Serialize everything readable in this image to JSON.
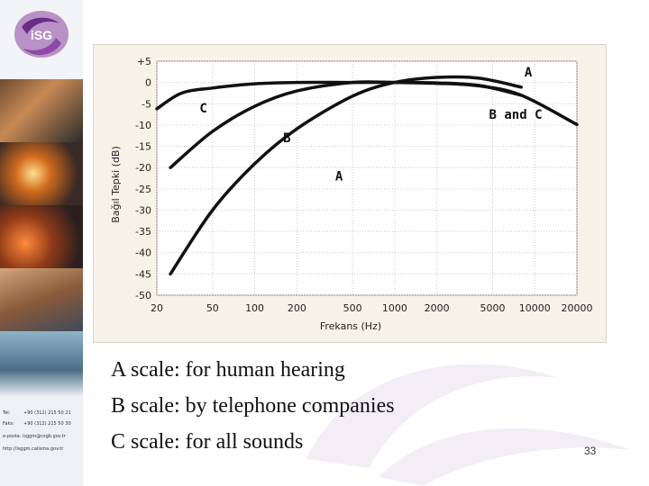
{
  "logo": {
    "text": "iSG"
  },
  "contact": {
    "tel": "Tel:",
    "tel_value": "+90 (312) 215 50 21",
    "fax": "Faks:",
    "fax_value": "+90 (312) 215 50 30",
    "email": "e-posta: isggm@csgb.gov.tr",
    "web": "http://isggm.calisma.gov.tr"
  },
  "chart_data": {
    "type": "line",
    "xlabel": "Frekans (Hz)",
    "ylabel": "Bağıl Tepki (dB)",
    "x_scale": "log",
    "xlim": [
      20,
      20000
    ],
    "ylim": [
      -50,
      5
    ],
    "x_ticks": [
      20,
      50,
      100,
      200,
      500,
      1000,
      2000,
      5000,
      10000,
      20000
    ],
    "x_tick_labels": [
      "20",
      "50",
      "100",
      "200",
      "500",
      "1000",
      "2000",
      "5000",
      "10000",
      "20000"
    ],
    "y_ticks": [
      5,
      0,
      -5,
      -10,
      -15,
      -20,
      -25,
      -30,
      -35,
      -40,
      -45,
      -50
    ],
    "y_tick_labels": [
      "+5",
      "0",
      "-5",
      "-10",
      "-15",
      "-20",
      "-25",
      "-30",
      "-35",
      "-40",
      "-45",
      "-50"
    ],
    "grid": true,
    "series": [
      {
        "name": "A",
        "x": [
          25,
          50,
          100,
          200,
          500,
          1000,
          2000,
          4000,
          8000
        ],
        "y": [
          -45,
          -30,
          -19.1,
          -10.9,
          -3.2,
          0,
          1.2,
          1,
          -1.1
        ]
      },
      {
        "name": "B",
        "x": [
          25,
          50,
          100,
          200,
          500,
          1000,
          2000,
          4000,
          8000
        ],
        "y": [
          -20,
          -11.5,
          -5.6,
          -2,
          0,
          0,
          -0.1,
          -0.7,
          -3
        ]
      },
      {
        "name": "C",
        "x": [
          20,
          30,
          50,
          100,
          200,
          500,
          1000,
          2000,
          4000,
          8000,
          20000
        ],
        "y": [
          -6.2,
          -2.5,
          -1.3,
          -0.3,
          0,
          0,
          0,
          -0.2,
          -0.8,
          -3,
          -9.9
        ]
      }
    ],
    "annotations": [
      {
        "text": "A",
        "x": 9000,
        "y": 2.5
      },
      {
        "text": "B",
        "x": 170,
        "y": -13
      },
      {
        "text": "C",
        "x": 43,
        "y": -6
      },
      {
        "text": "A",
        "x": 400,
        "y": -22
      },
      {
        "text": "B and C",
        "x": 7300,
        "y": -7.5
      }
    ]
  },
  "captions": [
    "A scale: for human hearing",
    "B scale: by telephone companies",
    "C scale: for all sounds"
  ],
  "page_number": "33"
}
